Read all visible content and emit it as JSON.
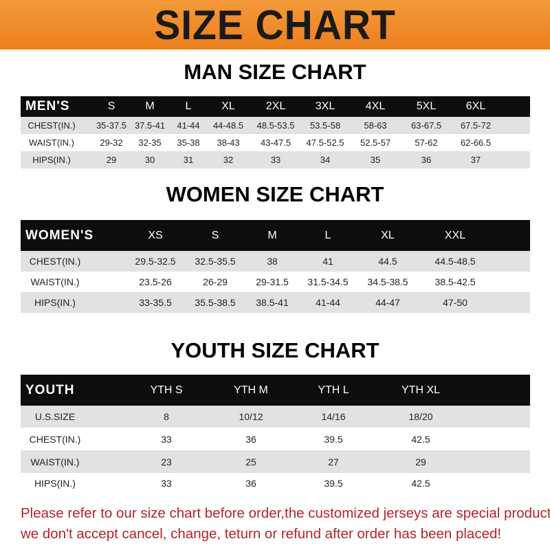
{
  "header": {
    "title": "SIZE CHART",
    "color": "#ec7f1c"
  },
  "men": {
    "title": "MAN SIZE CHART",
    "columns": [
      "MEN'S",
      "S",
      "M",
      "L",
      "XL",
      "2XL",
      "3XL",
      "4XL",
      "5XL",
      "6XL"
    ],
    "rows": [
      [
        "CHEST(IN.)",
        "35-37.5",
        "37.5-41",
        "41-44",
        "44-48.5",
        "48.5-53.5",
        "53.5-58",
        "58-63",
        "63-67.5",
        "67.5-72"
      ],
      [
        "WAIST(IN.)",
        "29-32",
        "32-35",
        "35-38",
        "38-43",
        "43-47.5",
        "47.5-52.5",
        "52.5-57",
        "57-62",
        "62-66.5"
      ],
      [
        "HIPS(IN.)",
        "29",
        "30",
        "31",
        "32",
        "33",
        "34",
        "35",
        "36",
        "37"
      ]
    ]
  },
  "women": {
    "title": "WOMEN SIZE CHART",
    "columns": [
      "WOMEN'S",
      "XS",
      "S",
      "M",
      "L",
      "XL",
      "XXL"
    ],
    "rows": [
      [
        "CHEST(IN.)",
        "29.5-32.5",
        "32.5-35.5",
        "38",
        "41",
        "44.5",
        "44.5-48.5"
      ],
      [
        "WAIST(IN.)",
        "23.5-26",
        "26-29",
        "29-31.5",
        "31.5-34.5",
        "34.5-38.5",
        "38.5-42.5"
      ],
      [
        "HIPS(IN.)",
        "33-35.5",
        "35.5-38.5",
        "38.5-41",
        "41-44",
        "44-47",
        "47-50"
      ]
    ]
  },
  "youth": {
    "title": "YOUTH SIZE CHART",
    "columns": [
      "YOUTH",
      "YTH S",
      "YTH M",
      "YTH L",
      "YTH XL"
    ],
    "rows": [
      [
        "U.S.SIZE",
        "8",
        "10/12",
        "14/16",
        "18/20"
      ],
      [
        "CHEST(IN.)",
        "33",
        "36",
        "39.5",
        "42.5"
      ],
      [
        "WAIST(IN.)",
        "23",
        "25",
        "27",
        "29"
      ],
      [
        "HIPS(IN.)",
        "33",
        "36",
        "39.5",
        "42.5"
      ]
    ]
  },
  "notice": {
    "line1": "Please refer to our size chart before order,the customized jerseys are special products,",
    "line2": "we don't accept cancel, change, teturn or refund after order has been placed!",
    "color": "#b4232a"
  }
}
